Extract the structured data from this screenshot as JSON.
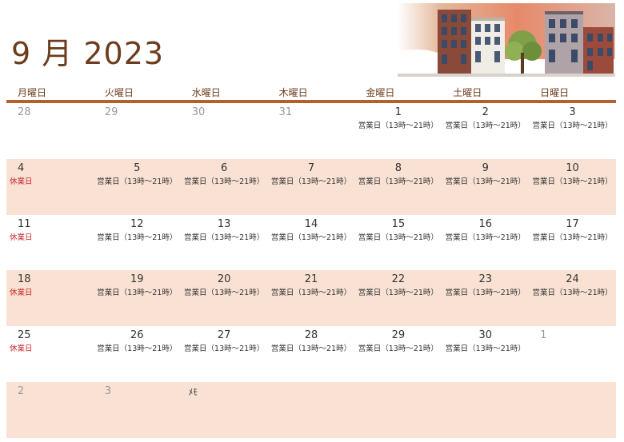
{
  "header": {
    "title": "9 月 2023"
  },
  "weekdays": [
    "月曜日",
    "火曜日",
    "水曜日",
    "木曜日",
    "金曜日",
    "土曜日",
    "日曜日"
  ],
  "weeks": [
    [
      {
        "d": "28",
        "other": true
      },
      {
        "d": "29",
        "other": true
      },
      {
        "d": "30",
        "other": true
      },
      {
        "d": "31",
        "other": true
      },
      {
        "d": "1",
        "note": "営業日（13時〜21時）"
      },
      {
        "d": "2",
        "note": "営業日（13時〜21時）"
      },
      {
        "d": "3",
        "note": "営業日（13時〜21時）"
      }
    ],
    [
      {
        "d": "4",
        "closed": "休業日"
      },
      {
        "d": "5",
        "note": "営業日（13時〜21時）"
      },
      {
        "d": "6",
        "note": "営業日（13時〜21時）"
      },
      {
        "d": "7",
        "note": "営業日（13時〜21時）"
      },
      {
        "d": "8",
        "note": "営業日（13時〜21時）"
      },
      {
        "d": "9",
        "note": "営業日（13時〜21時）"
      },
      {
        "d": "10",
        "note": "営業日（13時〜21時）"
      }
    ],
    [
      {
        "d": "11",
        "closed": "休業日"
      },
      {
        "d": "12",
        "note": "営業日（13時〜21時）"
      },
      {
        "d": "13",
        "note": "営業日（13時〜21時）"
      },
      {
        "d": "14",
        "note": "営業日（13時〜21時）"
      },
      {
        "d": "15",
        "note": "営業日（13時〜21時）"
      },
      {
        "d": "16",
        "note": "営業日（13時〜21時）"
      },
      {
        "d": "17",
        "note": "営業日（13時〜21時）"
      }
    ],
    [
      {
        "d": "18",
        "closed": "休業日"
      },
      {
        "d": "19",
        "note": "営業日（13時〜21時）"
      },
      {
        "d": "20",
        "note": "営業日（13時〜21時）"
      },
      {
        "d": "21",
        "note": "営業日（13時〜21時）"
      },
      {
        "d": "22",
        "note": "営業日（13時〜21時）"
      },
      {
        "d": "23",
        "note": "営業日（13時〜21時）"
      },
      {
        "d": "24",
        "note": "営業日（13時〜21時）"
      }
    ],
    [
      {
        "d": "25",
        "closed": "休業日"
      },
      {
        "d": "26",
        "note": "営業日（13時〜21時）"
      },
      {
        "d": "27",
        "note": "営業日（13時〜21時）"
      },
      {
        "d": "28",
        "note": "営業日（13時〜21時）"
      },
      {
        "d": "29",
        "note": "営業日（13時〜21時）"
      },
      {
        "d": "30",
        "note": "営業日（13時〜21時）"
      },
      {
        "d": "1",
        "other": true
      }
    ],
    [
      {
        "d": "2",
        "other": true
      },
      {
        "d": "3",
        "other": true
      },
      {
        "memo": "ﾒﾓ"
      },
      {},
      {},
      {},
      {}
    ]
  ],
  "colors": {
    "accent": "#b5602c",
    "title": "#6b3d1e",
    "shade": "#f9e2d4",
    "closed": "#c62828"
  },
  "illustration": "townhouses-sunset-image"
}
